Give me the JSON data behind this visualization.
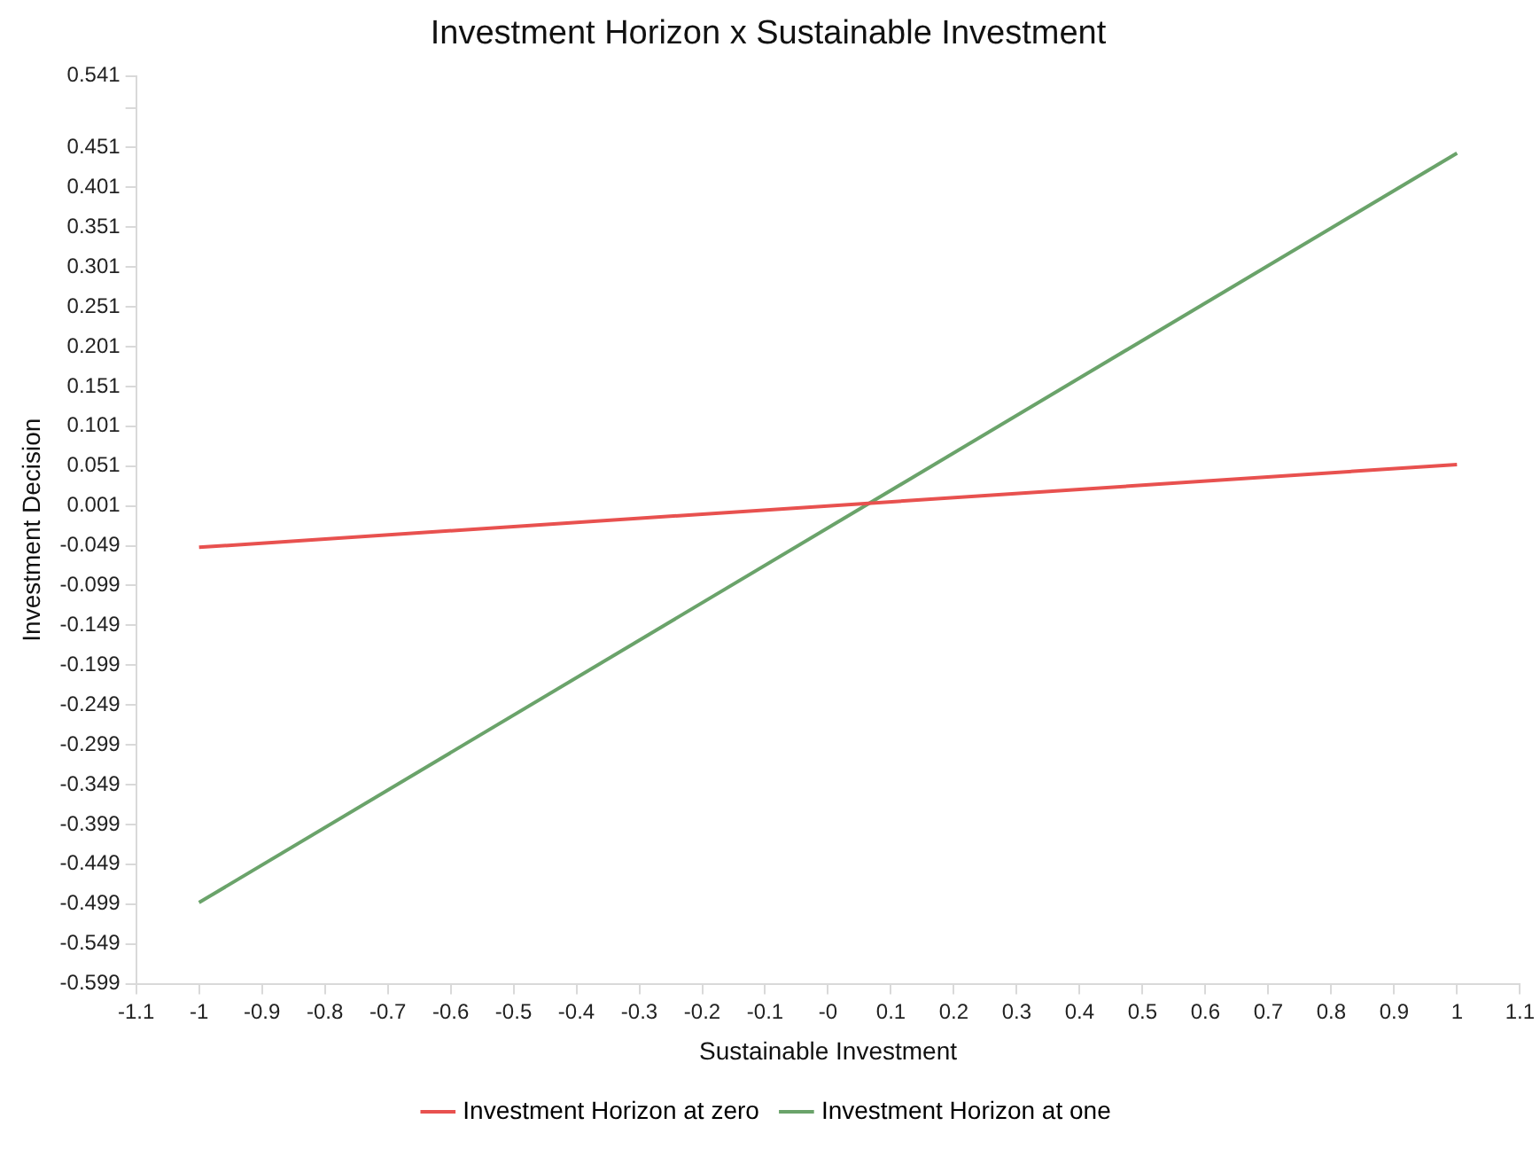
{
  "chart_data": {
    "type": "line",
    "title": "Investment Horizon x Sustainable Investment",
    "xlabel": "Sustainable Investment",
    "ylabel": "Investment Decision",
    "x": [
      -1,
      1
    ],
    "series": [
      {
        "name": "Investment Horizon at zero",
        "color": "#e8514f",
        "values": [
          -0.051,
          0.053
        ]
      },
      {
        "name": "Investment Horizon at one",
        "color": "#6aa36a",
        "values": [
          -0.497,
          0.444
        ]
      }
    ],
    "xlim": [
      -1.1,
      1.1
    ],
    "xticks": [
      -1.1,
      -1,
      -0.9,
      -0.8,
      -0.7,
      -0.6,
      -0.5,
      -0.4,
      -0.3,
      -0.2,
      -0.1,
      {
        "value": 0,
        "label": "-0"
      },
      0.1,
      0.2,
      0.3,
      0.4,
      0.5,
      0.6,
      0.7,
      0.8,
      0.9,
      1,
      1.1
    ],
    "ylim": [
      -0.599,
      0.541
    ],
    "yticks": [
      -0.599,
      -0.549,
      -0.499,
      -0.449,
      -0.399,
      -0.349,
      -0.299,
      -0.249,
      -0.199,
      -0.149,
      -0.099,
      -0.049,
      0.001,
      0.051,
      0.101,
      0.151,
      0.201,
      0.251,
      0.301,
      0.351,
      0.401,
      0.451,
      {
        "value": 0.501,
        "label": null
      },
      0.541
    ],
    "grid": false,
    "legend": "bottom",
    "marker": "none",
    "line_style": "solid"
  }
}
